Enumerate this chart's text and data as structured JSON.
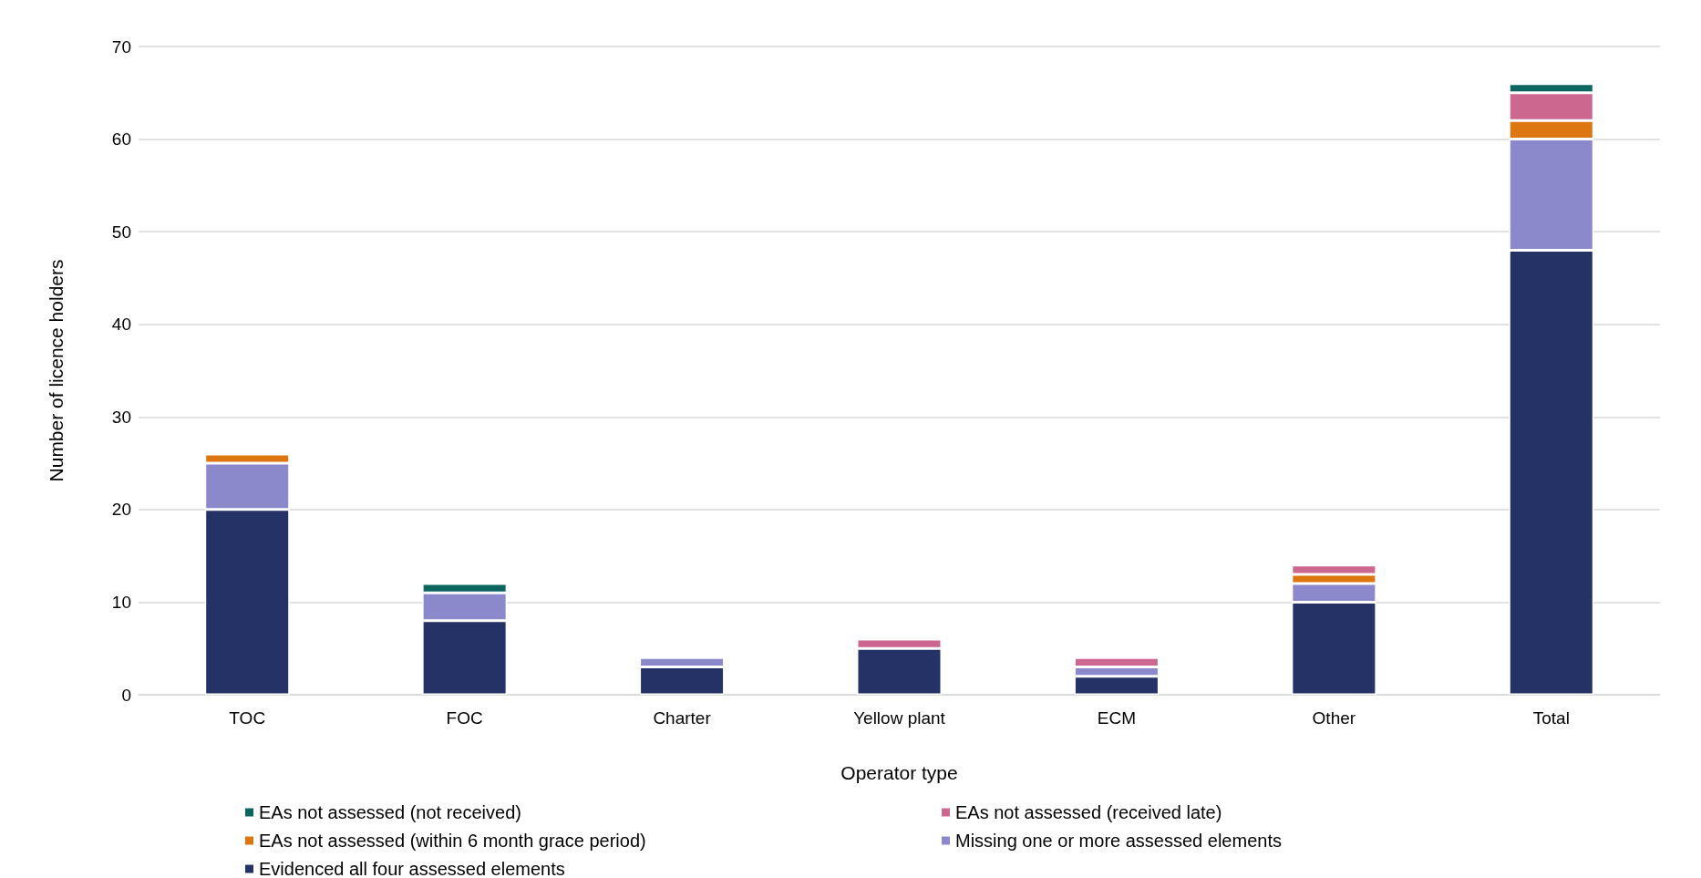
{
  "chart_data": {
    "type": "bar",
    "stacked": true,
    "xlabel": "Operator type",
    "ylabel": "Number of licence holders",
    "categories": [
      "TOC",
      "FOC",
      "Charter",
      "Yellow plant",
      "ECM",
      "Other",
      "Total"
    ],
    "series": [
      {
        "name": "Evidenced all four assessed elements",
        "color": "#243266",
        "values": [
          20,
          8,
          3,
          5,
          2,
          10,
          48
        ]
      },
      {
        "name": "Missing one or more assessed elements",
        "color": "#8b89cc",
        "values": [
          5,
          3,
          1,
          0,
          1,
          2,
          12
        ]
      },
      {
        "name": "EAs not assessed (within 6 month grace period)",
        "color": "#dd7511",
        "values": [
          1,
          0,
          0,
          0,
          0,
          1,
          2
        ]
      },
      {
        "name": "EAs not assessed (received late)",
        "color": "#cc6790",
        "values": [
          0,
          0,
          0,
          1,
          1,
          1,
          3
        ]
      },
      {
        "name": "EAs not assessed (not received)",
        "color": "#0d6560",
        "values": [
          0,
          1,
          0,
          0,
          0,
          0,
          1
        ]
      }
    ],
    "ylim": [
      0,
      70
    ],
    "yticks": [
      0,
      10,
      20,
      30,
      40,
      50,
      60,
      70
    ],
    "grid": "y",
    "legend": "bottom"
  }
}
